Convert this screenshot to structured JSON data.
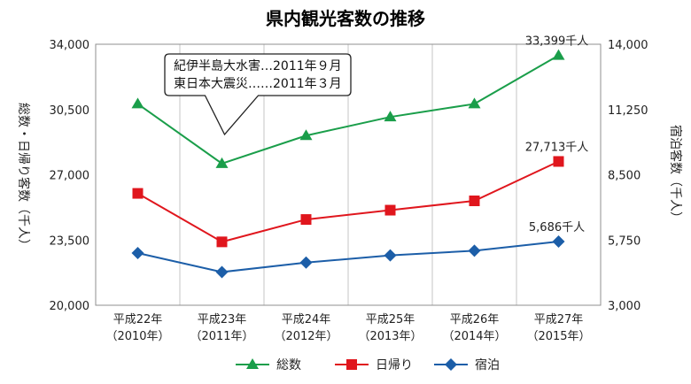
{
  "chart_data": {
    "type": "line",
    "title": "県内観光客数の推移",
    "categories": [
      [
        "平成22年",
        "（2010年）"
      ],
      [
        "平成23年",
        "（2011年）"
      ],
      [
        "平成24年",
        "（2012年）"
      ],
      [
        "平成25年",
        "（2013年）"
      ],
      [
        "平成26年",
        "（2014年）"
      ],
      [
        "平成27年",
        "（2015年）"
      ]
    ],
    "ylabel_left": "総数・日帰り客数（千人）",
    "ylabel_right": "宿泊客数（千人）",
    "ylim_left": [
      20000,
      34000
    ],
    "ylim_right": [
      3000,
      14000
    ],
    "yticks_left": [
      "20,000",
      "23,500",
      "27,000",
      "30,500",
      "34,000"
    ],
    "yticks_right": [
      "3,000",
      "5,750",
      "8,500",
      "11,250",
      "14,000"
    ],
    "grid": "vertical",
    "legend_position": "bottom",
    "series": [
      {
        "name": "総数",
        "axis": "left",
        "color": "#1a9e4a",
        "marker": "triangle",
        "values": [
          30800,
          27600,
          29100,
          30100,
          30800,
          33399
        ]
      },
      {
        "name": "日帰り",
        "axis": "left",
        "color": "#e0161d",
        "marker": "square",
        "values": [
          26000,
          23400,
          24600,
          25100,
          25600,
          27713
        ]
      },
      {
        "name": "宿泊",
        "axis": "right",
        "color": "#1c5ea8",
        "marker": "diamond",
        "values": [
          5200,
          4400,
          4800,
          5100,
          5300,
          5686
        ]
      }
    ],
    "data_labels": [
      {
        "series": 0,
        "index": 5,
        "text": "33,399千人"
      },
      {
        "series": 1,
        "index": 5,
        "text": "27,713千人"
      },
      {
        "series": 2,
        "index": 5,
        "text": "5,686千人"
      }
    ],
    "annotation": {
      "lines": [
        "紀伊半島大水害…2011年９月",
        "東日本大震災……2011年３月"
      ],
      "target_index": 1
    }
  }
}
